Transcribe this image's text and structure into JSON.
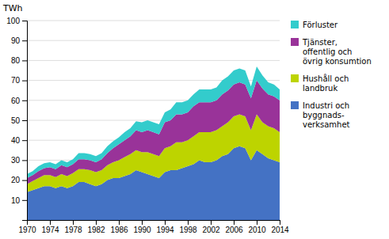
{
  "chart_data": {
    "type": "area",
    "stacked": true,
    "ylabel": "TWh",
    "x": [
      1970,
      1971,
      1972,
      1973,
      1974,
      1975,
      1976,
      1977,
      1978,
      1979,
      1980,
      1981,
      1982,
      1983,
      1984,
      1985,
      1986,
      1987,
      1988,
      1989,
      1990,
      1991,
      1992,
      1993,
      1994,
      1995,
      1996,
      1997,
      1998,
      1999,
      2000,
      2001,
      2002,
      2003,
      2004,
      2005,
      2006,
      2007,
      2008,
      2009,
      2010,
      2011,
      2012,
      2013,
      2014
    ],
    "series": [
      {
        "name": "Industri och\nbyggnads-\nverksamhet",
        "color": "#4472c4",
        "values": [
          14,
          15,
          16,
          17,
          17,
          16,
          17,
          16,
          17,
          19,
          19,
          18,
          17,
          18,
          20,
          21,
          21,
          22,
          23,
          25,
          24,
          23,
          22,
          21,
          24,
          25,
          25,
          26,
          27,
          28,
          30,
          29,
          29,
          30,
          32,
          33,
          36,
          37,
          36,
          30,
          35,
          33,
          31,
          30,
          29
        ]
      },
      {
        "name": "Hushåll och\nlandbruk",
        "color": "#bdd400",
        "values": [
          4,
          4.5,
          5,
          5.5,
          5.5,
          5.5,
          6,
          6,
          6.5,
          6.5,
          6.5,
          7,
          7,
          7,
          7.5,
          8,
          9,
          9.5,
          10,
          10,
          10,
          11,
          11,
          11,
          12,
          12,
          14,
          13,
          13,
          14,
          14,
          15,
          15,
          15,
          15,
          16,
          16,
          16,
          16,
          15,
          18,
          16,
          16,
          16,
          15
        ]
      },
      {
        "name": "Tjänster,\noffentlig och\növrig konsumtion",
        "color": "#993399",
        "values": [
          3,
          3,
          3.5,
          3.5,
          4,
          4,
          4.5,
          4.5,
          4.5,
          5,
          5,
          5,
          5,
          5.5,
          6,
          7,
          8,
          8.5,
          9,
          10,
          10,
          11,
          11,
          11,
          13,
          13,
          14,
          14,
          14,
          15,
          15,
          15,
          15,
          15,
          16,
          16,
          16,
          16,
          16,
          16,
          17,
          17,
          16,
          16,
          16
        ]
      },
      {
        "name": "Förluster",
        "color": "#33cccc",
        "values": [
          2,
          2,
          2.5,
          2.5,
          2.5,
          2.5,
          2.5,
          2.5,
          2.5,
          3,
          3,
          3,
          3,
          3,
          3.5,
          3.5,
          3.5,
          4,
          4,
          4.5,
          5,
          5,
          5,
          5,
          5,
          5.5,
          6,
          6,
          6,
          6,
          6.5,
          6.5,
          6.5,
          6.5,
          7,
          7,
          7,
          7,
          7,
          6,
          7,
          6.5,
          6,
          6,
          5.5
        ]
      }
    ],
    "xlim": [
      1970,
      2014
    ],
    "xticks": [
      1970,
      1974,
      1978,
      1982,
      1986,
      1990,
      1994,
      1998,
      2002,
      2006,
      2010,
      2014
    ],
    "ylim": [
      0,
      100
    ],
    "yticks": [
      10,
      20,
      30,
      40,
      50,
      60,
      70,
      80,
      90,
      100
    ],
    "grid": true,
    "legend": "right"
  }
}
